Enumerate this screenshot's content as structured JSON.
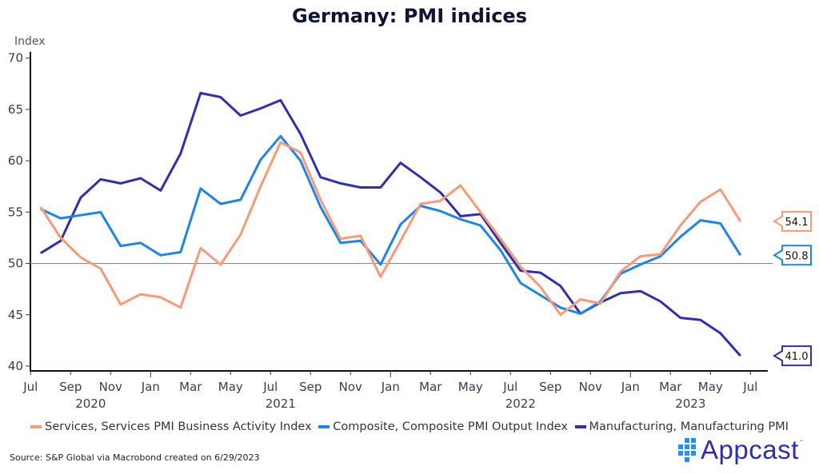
{
  "chart_data": {
    "type": "line",
    "title": "Germany: PMI indices",
    "ylabel": "Index",
    "xlabel": "",
    "ylim": [
      40,
      70
    ],
    "yticks": [
      40,
      45,
      50,
      55,
      60,
      65,
      70
    ],
    "reference_line": 50,
    "x_start": "2020-07",
    "x": [
      "2020-07",
      "2020-08",
      "2020-09",
      "2020-10",
      "2020-11",
      "2020-12",
      "2021-01",
      "2021-02",
      "2021-03",
      "2021-04",
      "2021-05",
      "2021-06",
      "2021-07",
      "2021-08",
      "2021-09",
      "2021-10",
      "2021-11",
      "2021-12",
      "2022-01",
      "2022-02",
      "2022-03",
      "2022-04",
      "2022-05",
      "2022-06",
      "2022-07",
      "2022-08",
      "2022-09",
      "2022-10",
      "2022-11",
      "2022-12",
      "2023-01",
      "2023-02",
      "2023-03",
      "2023-04",
      "2023-05",
      "2023-06"
    ],
    "xticks": [
      {
        "label": "Jul",
        "year": ""
      },
      {
        "label": "Sep",
        "year": ""
      },
      {
        "label": "Nov",
        "year": ""
      },
      {
        "label": "Jan",
        "year": ""
      },
      {
        "label": "Mar",
        "year": ""
      },
      {
        "label": "May",
        "year": ""
      },
      {
        "label": "Jul",
        "year": ""
      },
      {
        "label": "Sep",
        "year": ""
      },
      {
        "label": "Nov",
        "year": ""
      },
      {
        "label": "Jan",
        "year": ""
      },
      {
        "label": "Mar",
        "year": ""
      },
      {
        "label": "May",
        "year": ""
      },
      {
        "label": "Jul",
        "year": ""
      },
      {
        "label": "Sep",
        "year": ""
      },
      {
        "label": "Nov",
        "year": ""
      },
      {
        "label": "Jan",
        "year": ""
      },
      {
        "label": "Mar",
        "year": ""
      },
      {
        "label": "May",
        "year": ""
      },
      {
        "label": "Jul",
        "year": ""
      }
    ],
    "year_labels": [
      {
        "label": "2020",
        "center_month_index": 3
      },
      {
        "label": "2021",
        "center_month_index": 12.5
      },
      {
        "label": "2022",
        "center_month_index": 24.5
      },
      {
        "label": "2023",
        "center_month_index": 33
      }
    ],
    "series": [
      {
        "name": "Services, Services PMI Business Activity Index",
        "color": "#f99a74",
        "values": [
          55.5,
          52.5,
          50.6,
          49.5,
          46.0,
          47.0,
          46.7,
          45.7,
          51.5,
          49.9,
          52.8,
          57.5,
          61.8,
          60.8,
          56.2,
          52.4,
          52.7,
          48.7,
          52.2,
          55.8,
          56.1,
          57.6,
          55.0,
          52.4,
          49.7,
          47.7,
          45.0,
          46.5,
          46.1,
          49.2,
          50.7,
          50.9,
          53.7,
          56.0,
          57.2,
          54.1
        ],
        "end_label": "54.1"
      },
      {
        "name": "Composite, Composite PMI Output Index",
        "color": "#1a85f0",
        "values": [
          55.3,
          54.4,
          54.7,
          55.0,
          51.7,
          52.0,
          50.8,
          51.1,
          57.3,
          55.8,
          56.2,
          60.1,
          62.4,
          60.0,
          55.5,
          52.0,
          52.2,
          49.9,
          53.8,
          55.6,
          55.1,
          54.3,
          53.7,
          51.3,
          48.1,
          46.9,
          45.7,
          45.1,
          46.3,
          49.0,
          49.9,
          50.7,
          52.6,
          54.2,
          53.9,
          50.8
        ],
        "end_label": "50.8"
      },
      {
        "name": "Manufacturing, Manufacturing PMI",
        "color": "#2e2fb5",
        "values": [
          51.0,
          52.2,
          56.4,
          58.2,
          57.8,
          58.3,
          57.1,
          60.7,
          66.6,
          66.2,
          64.4,
          65.1,
          65.9,
          62.6,
          58.4,
          57.8,
          57.4,
          57.4,
          59.8,
          58.4,
          56.9,
          54.6,
          54.8,
          52.0,
          49.3,
          49.1,
          47.8,
          45.1,
          46.2,
          47.1,
          47.3,
          46.3,
          44.7,
          44.5,
          43.2,
          41.0
        ],
        "end_label": "41.0"
      }
    ],
    "legend_position": "bottom-center",
    "grid": false
  },
  "source": "Source: S&P Global via Macrobond created on 6/29/2023",
  "brand": {
    "name": "Appcast",
    "tm": "™"
  }
}
